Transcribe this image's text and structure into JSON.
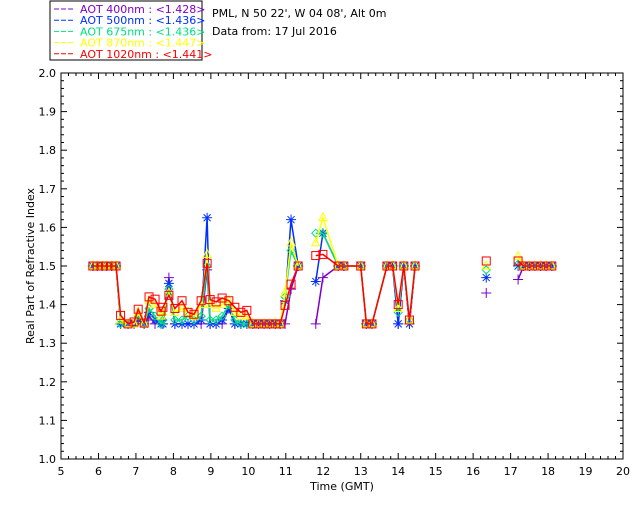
{
  "chart_data": {
    "type": "line",
    "title_lines": [
      "PML, N 50 22', W 04 08', Alt 0m",
      "Data from: 17 Jul 2016"
    ],
    "xlabel": "Time (GMT)",
    "ylabel": "Real Part of Refractive Index",
    "xlim": [
      5,
      20
    ],
    "ylim": [
      1.0,
      2.0
    ],
    "xticks": [
      "5",
      "6",
      "7",
      "8",
      "9",
      "10",
      "11",
      "12",
      "13",
      "14",
      "15",
      "16",
      "17",
      "18",
      "19",
      "20"
    ],
    "yticks": [
      "1.0",
      "1.1",
      "1.2",
      "1.3",
      "1.4",
      "1.5",
      "1.6",
      "1.7",
      "1.8",
      "1.9",
      "2.0"
    ],
    "grid": false,
    "legend_position": "top-left outside",
    "x": [
      5.85,
      5.97,
      6.1,
      6.22,
      6.35,
      6.47,
      6.59,
      6.79,
      6.95,
      7.06,
      7.22,
      7.35,
      7.51,
      7.67,
      7.72,
      7.88,
      8.04,
      8.23,
      8.39,
      8.55,
      8.74,
      8.9,
      8.98,
      9.14,
      9.3,
      9.48,
      9.64,
      9.8,
      9.96,
      10.12,
      10.27,
      10.42,
      10.57,
      10.72,
      10.85,
      10.98,
      11.14,
      11.33,
      11.8,
      11.99,
      12.4,
      12.55,
      13.0,
      13.15,
      13.3,
      13.7,
      13.85,
      14.0,
      14.15,
      14.3,
      14.45,
      16.35,
      17.2,
      17.35,
      17.5,
      17.65,
      17.8,
      17.95,
      18.1
    ],
    "series": [
      {
        "name": "AOT  400nm : <1.428>",
        "color": "#8000c8",
        "marker": "plus",
        "values": [
          1.5,
          1.5,
          1.5,
          1.5,
          1.5,
          1.5,
          1.35,
          1.35,
          1.35,
          1.36,
          1.35,
          1.37,
          1.35,
          1.36,
          1.35,
          1.47,
          1.35,
          1.35,
          1.35,
          1.35,
          1.35,
          1.49,
          1.35,
          1.35,
          1.35,
          1.39,
          1.35,
          1.35,
          1.35,
          1.35,
          1.35,
          1.35,
          1.35,
          1.35,
          1.35,
          1.35,
          1.44,
          1.5,
          1.35,
          1.47,
          1.5,
          1.5,
          1.5,
          1.35,
          1.35,
          1.5,
          1.5,
          1.35,
          1.5,
          1.35,
          1.5,
          1.43,
          1.465,
          1.5,
          1.5,
          1.5,
          1.5,
          1.5,
          1.5
        ]
      },
      {
        "name": "AOT  500nm : <1.436>",
        "color": "#0030ff",
        "marker": "asterisk",
        "values": [
          1.5,
          1.5,
          1.5,
          1.5,
          1.5,
          1.5,
          1.35,
          1.35,
          1.35,
          1.36,
          1.35,
          1.38,
          1.36,
          1.35,
          1.35,
          1.455,
          1.35,
          1.35,
          1.35,
          1.35,
          1.36,
          1.625,
          1.35,
          1.35,
          1.36,
          1.39,
          1.35,
          1.35,
          1.35,
          1.35,
          1.35,
          1.35,
          1.35,
          1.35,
          1.35,
          1.41,
          1.62,
          1.5,
          1.46,
          1.585,
          1.5,
          1.5,
          1.5,
          1.35,
          1.35,
          1.5,
          1.5,
          1.35,
          1.5,
          1.35,
          1.5,
          1.47,
          1.5,
          1.5,
          1.5,
          1.5,
          1.5,
          1.5,
          1.5
        ]
      },
      {
        "name": "AOT  675nm : <1.436>",
        "color": "#00e080",
        "marker": "diamond",
        "values": [
          1.5,
          1.5,
          1.5,
          1.5,
          1.5,
          1.5,
          1.35,
          1.35,
          1.35,
          1.37,
          1.35,
          1.39,
          1.37,
          1.35,
          1.36,
          1.44,
          1.36,
          1.36,
          1.37,
          1.36,
          1.37,
          1.5,
          1.36,
          1.36,
          1.37,
          1.4,
          1.36,
          1.35,
          1.35,
          1.35,
          1.35,
          1.35,
          1.35,
          1.35,
          1.35,
          1.42,
          1.54,
          1.5,
          1.585,
          1.585,
          1.5,
          1.5,
          1.5,
          1.35,
          1.35,
          1.5,
          1.5,
          1.38,
          1.5,
          1.36,
          1.5,
          1.49,
          1.505,
          1.5,
          1.5,
          1.5,
          1.5,
          1.5,
          1.5
        ]
      },
      {
        "name": "AOT  870nm : <1.447>",
        "color": "#ffff00",
        "marker": "triangle",
        "values": [
          1.5,
          1.5,
          1.5,
          1.5,
          1.5,
          1.5,
          1.36,
          1.35,
          1.35,
          1.38,
          1.35,
          1.41,
          1.4,
          1.37,
          1.38,
          1.43,
          1.38,
          1.39,
          1.38,
          1.37,
          1.4,
          1.53,
          1.4,
          1.39,
          1.4,
          1.41,
          1.38,
          1.37,
          1.37,
          1.35,
          1.35,
          1.35,
          1.35,
          1.35,
          1.35,
          1.43,
          1.56,
          1.5,
          1.56,
          1.625,
          1.5,
          1.5,
          1.5,
          1.35,
          1.35,
          1.5,
          1.5,
          1.39,
          1.5,
          1.36,
          1.5,
          1.5,
          1.525,
          1.5,
          1.5,
          1.5,
          1.5,
          1.5,
          1.5
        ]
      },
      {
        "name": "AOT 1020nm : <1.441>",
        "color": "#ff0000",
        "marker": "square",
        "values": [
          1.5,
          1.5,
          1.5,
          1.5,
          1.5,
          1.5,
          1.372,
          1.35,
          1.355,
          1.388,
          1.352,
          1.42,
          1.414,
          1.383,
          1.393,
          1.424,
          1.39,
          1.41,
          1.38,
          1.375,
          1.41,
          1.507,
          1.413,
          1.407,
          1.417,
          1.41,
          1.393,
          1.38,
          1.385,
          1.35,
          1.35,
          1.35,
          1.35,
          1.35,
          1.35,
          1.398,
          1.453,
          1.5,
          1.527,
          1.53,
          1.5,
          1.5,
          1.5,
          1.35,
          1.35,
          1.5,
          1.5,
          1.4,
          1.5,
          1.36,
          1.5,
          1.513,
          1.513,
          1.5,
          1.5,
          1.5,
          1.5,
          1.5,
          1.5
        ]
      }
    ]
  }
}
